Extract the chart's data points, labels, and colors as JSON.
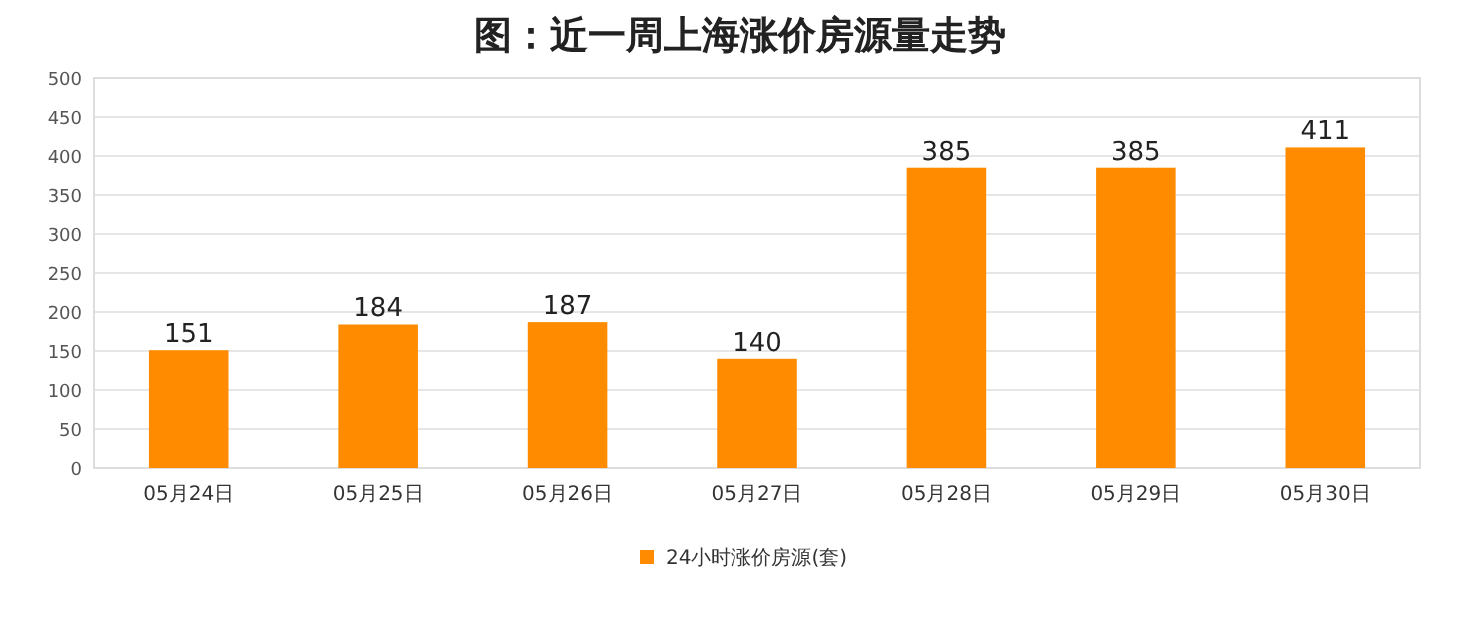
{
  "chart_data": {
    "type": "bar",
    "title": "图：近一周上海涨价房源量走势",
    "categories": [
      "05月24日",
      "05月25日",
      "05月26日",
      "05月27日",
      "05月28日",
      "05月29日",
      "05月30日"
    ],
    "series": [
      {
        "name": "24小时涨价房源(套)",
        "color": "#ff8c00",
        "values": [
          151,
          184,
          187,
          140,
          385,
          385,
          411
        ]
      }
    ],
    "ylim": [
      0,
      500
    ],
    "yticks": [
      0,
      50,
      100,
      150,
      200,
      250,
      300,
      350,
      400,
      450,
      500
    ],
    "grid": "y",
    "legend": "bottom",
    "data_labels": true
  }
}
